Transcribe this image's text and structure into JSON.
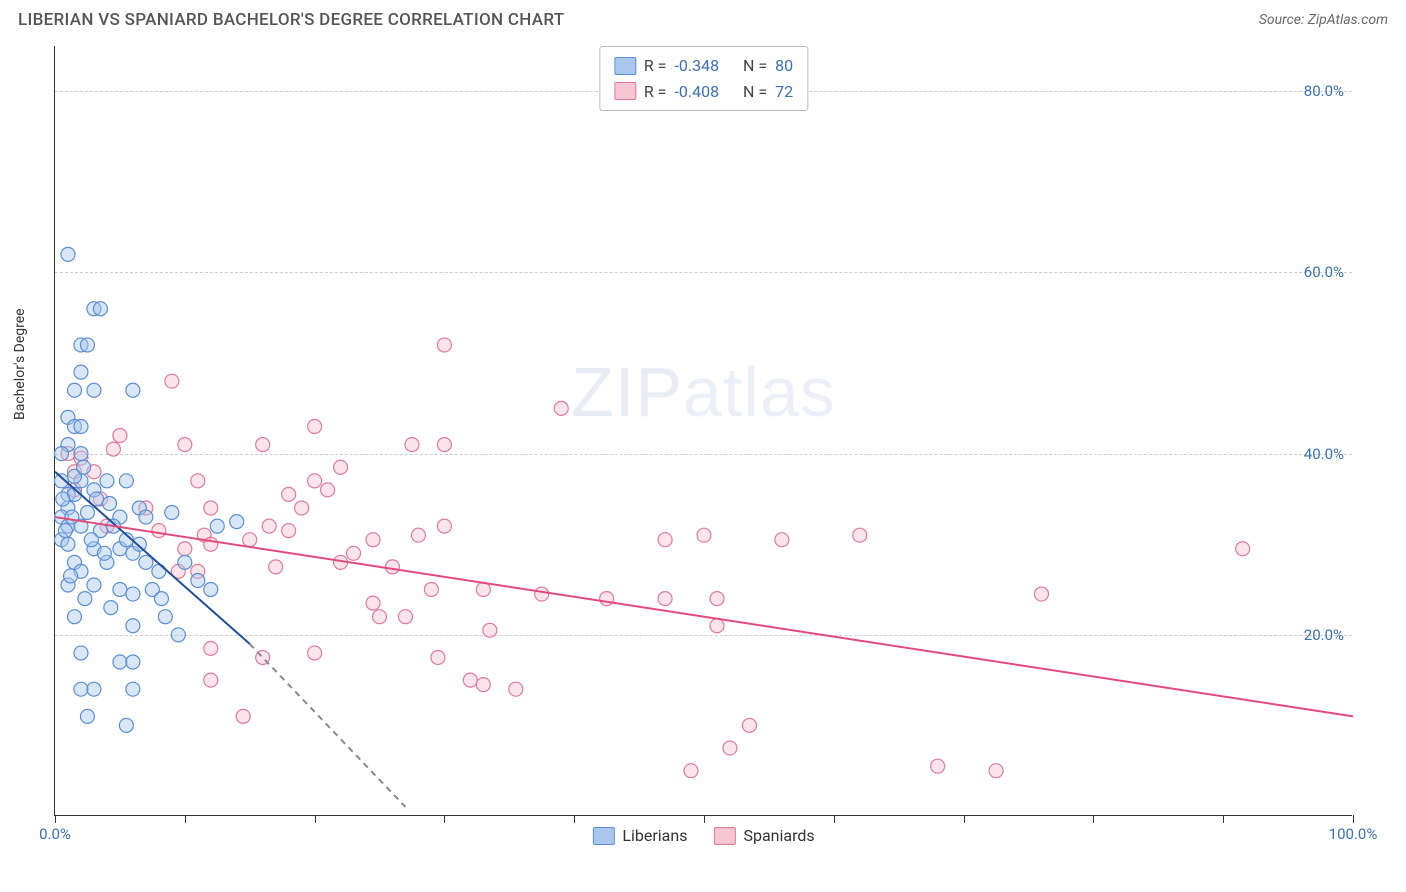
{
  "header": {
    "title": "LIBERIAN VS SPANIARD BACHELOR'S DEGREE CORRELATION CHART",
    "source_label": "Source:",
    "source_value": "ZipAtlas.com"
  },
  "chart": {
    "type": "scatter",
    "ylabel": "Bachelor's Degree",
    "xlim": [
      0,
      100
    ],
    "ylim": [
      0,
      85
    ],
    "xtick_labels": {
      "0": "0.0%",
      "100": "100.0%"
    },
    "xtick_positions": [
      0,
      10,
      20,
      30,
      40,
      50,
      60,
      70,
      80,
      90,
      100
    ],
    "ytick_values": [
      20,
      40,
      60,
      80
    ],
    "ytick_labels": [
      "20.0%",
      "40.0%",
      "60.0%",
      "80.0%"
    ],
    "ytick_color": "#3b6fb6",
    "xtick_color": "#3b6fb6",
    "grid_color": "#cccccc",
    "background_color": "#ffffff",
    "marker_radius": 7,
    "marker_opacity": 0.45,
    "watermark": "ZIPatlas",
    "series": {
      "liberians": {
        "label": "Liberians",
        "fill": "#a9c7ec",
        "stroke": "#5b8fd6",
        "line_color": "#1f4e9c",
        "R": "-0.348",
        "N": "80",
        "trend": {
          "x1": 0,
          "y1": 38,
          "x2": 15,
          "y2": 19,
          "dash_x2": 27,
          "dash_y2": 1
        },
        "points": [
          [
            1,
            62
          ],
          [
            3,
            56
          ],
          [
            3.5,
            56
          ],
          [
            2,
            52
          ],
          [
            2.5,
            52
          ],
          [
            2,
            49
          ],
          [
            1.5,
            47
          ],
          [
            3,
            47
          ],
          [
            6,
            47
          ],
          [
            1,
            44
          ],
          [
            1.5,
            43
          ],
          [
            2,
            43
          ],
          [
            1,
            41
          ],
          [
            0.5,
            40
          ],
          [
            2,
            40
          ],
          [
            0.5,
            37
          ],
          [
            2,
            37
          ],
          [
            4,
            37
          ],
          [
            5.5,
            37
          ],
          [
            1,
            35.5
          ],
          [
            1.5,
            35.5
          ],
          [
            3,
            36
          ],
          [
            1,
            34
          ],
          [
            0.5,
            33
          ],
          [
            2.5,
            33.5
          ],
          [
            5,
            33
          ],
          [
            6.5,
            34
          ],
          [
            9,
            33.5
          ],
          [
            1,
            32
          ],
          [
            2,
            32
          ],
          [
            3.5,
            31.5
          ],
          [
            4.5,
            32
          ],
          [
            7,
            33
          ],
          [
            12.5,
            32
          ],
          [
            0.5,
            30.5
          ],
          [
            1,
            30
          ],
          [
            3,
            29.5
          ],
          [
            5,
            29.5
          ],
          [
            6,
            29
          ],
          [
            6.5,
            30
          ],
          [
            14,
            32.5
          ],
          [
            1.5,
            28
          ],
          [
            4,
            28
          ],
          [
            2,
            27
          ],
          [
            7,
            28
          ],
          [
            8,
            27
          ],
          [
            10,
            28
          ],
          [
            1,
            25.5
          ],
          [
            3,
            25.5
          ],
          [
            5,
            25
          ],
          [
            6,
            24.5
          ],
          [
            7.5,
            25
          ],
          [
            12,
            25
          ],
          [
            1.5,
            22
          ],
          [
            6,
            21
          ],
          [
            8.5,
            22
          ],
          [
            9.5,
            20
          ],
          [
            2,
            18
          ],
          [
            5,
            17
          ],
          [
            6,
            17
          ],
          [
            2,
            14
          ],
          [
            3,
            14
          ],
          [
            6,
            14
          ],
          [
            2.5,
            11
          ],
          [
            5.5,
            10
          ],
          [
            1.5,
            37.5
          ],
          [
            2.2,
            38.5
          ],
          [
            3.2,
            35
          ],
          [
            4.2,
            34.5
          ],
          [
            0.8,
            31.5
          ],
          [
            2.8,
            30.5
          ],
          [
            3.8,
            29
          ],
          [
            5.5,
            30.5
          ],
          [
            1.2,
            26.5
          ],
          [
            2.3,
            24
          ],
          [
            4.3,
            23
          ],
          [
            0.6,
            35
          ],
          [
            1.3,
            33
          ],
          [
            8.2,
            24
          ],
          [
            11,
            26
          ]
        ]
      },
      "spaniards": {
        "label": "Spaniards",
        "fill": "#f6c6d3",
        "stroke": "#e27a9a",
        "line_color": "#e24a7a",
        "R": "-0.408",
        "N": "72",
        "trend": {
          "x1": 0,
          "y1": 33,
          "x2": 100,
          "y2": 11
        },
        "points": [
          [
            30,
            52
          ],
          [
            9,
            48
          ],
          [
            39,
            45
          ],
          [
            20,
            43
          ],
          [
            5,
            42
          ],
          [
            4.5,
            40.5
          ],
          [
            1,
            40
          ],
          [
            10,
            41
          ],
          [
            2,
            39.5
          ],
          [
            16,
            41
          ],
          [
            27.5,
            41
          ],
          [
            30,
            41
          ],
          [
            1.5,
            38
          ],
          [
            3,
            38
          ],
          [
            11,
            37
          ],
          [
            20,
            37
          ],
          [
            22,
            38.5
          ],
          [
            12,
            34
          ],
          [
            18,
            35.5
          ],
          [
            19,
            34
          ],
          [
            21,
            36
          ],
          [
            4,
            32
          ],
          [
            8,
            31.5
          ],
          [
            11.5,
            31
          ],
          [
            15,
            30.5
          ],
          [
            16.5,
            32
          ],
          [
            10,
            29.5
          ],
          [
            12,
            30
          ],
          [
            18,
            31.5
          ],
          [
            24.5,
            30.5
          ],
          [
            28,
            31
          ],
          [
            30,
            32
          ],
          [
            22,
            28
          ],
          [
            23,
            29
          ],
          [
            9.5,
            27
          ],
          [
            11,
            27
          ],
          [
            17,
            27.5
          ],
          [
            26,
            27.5
          ],
          [
            29,
            25
          ],
          [
            33,
            25
          ],
          [
            50,
            31
          ],
          [
            47,
            30.5
          ],
          [
            56,
            30.5
          ],
          [
            62,
            31
          ],
          [
            91.5,
            29.5
          ],
          [
            24.5,
            23.5
          ],
          [
            27,
            22
          ],
          [
            37.5,
            24.5
          ],
          [
            42.5,
            24
          ],
          [
            47,
            24
          ],
          [
            51,
            24
          ],
          [
            51,
            21
          ],
          [
            20,
            18
          ],
          [
            25,
            22
          ],
          [
            33.5,
            20.5
          ],
          [
            12,
            18.5
          ],
          [
            16,
            17.5
          ],
          [
            29.5,
            17.5
          ],
          [
            12,
            15
          ],
          [
            32,
            15
          ],
          [
            33,
            14.5
          ],
          [
            35.5,
            14
          ],
          [
            14.5,
            11
          ],
          [
            53.5,
            10
          ],
          [
            52,
            7.5
          ],
          [
            49,
            5
          ],
          [
            76,
            24.5
          ],
          [
            68,
            5.5
          ],
          [
            72.5,
            5
          ],
          [
            1.5,
            36
          ],
          [
            3.5,
            35
          ],
          [
            7,
            34
          ]
        ]
      }
    },
    "legend_top": {
      "R_label": "R =",
      "N_label": "N =",
      "label_color": "#444",
      "value_color": "#3b6fb6"
    },
    "legend_bottom_order": [
      "liberians",
      "spaniards"
    ]
  }
}
